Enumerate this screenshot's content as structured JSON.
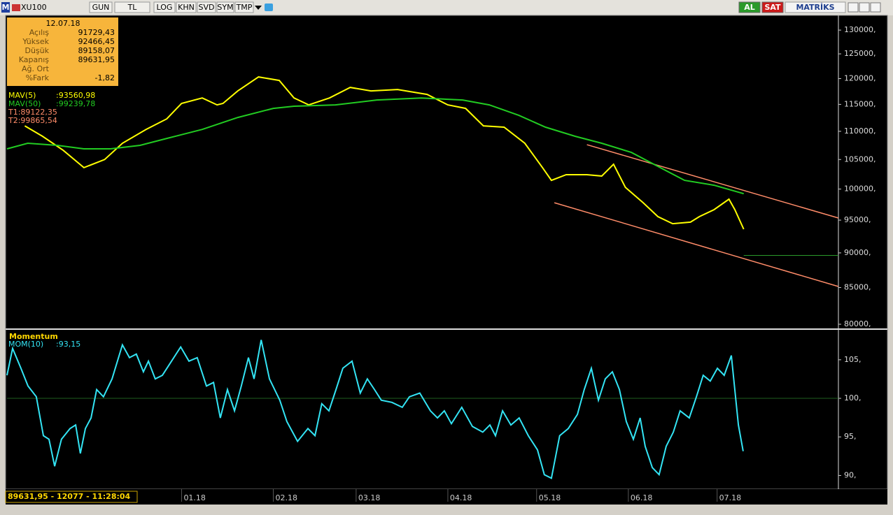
{
  "toolbar": {
    "logo": "M",
    "symbol": "XU100",
    "buttons": [
      "GUN",
      "TL",
      "LOG",
      "KHN",
      "SVD",
      "SYM",
      "TMP"
    ],
    "actions": [
      "AL",
      "SAT"
    ],
    "brand": "MATRİKS"
  },
  "info_panel": {
    "date": "12.07.18",
    "rows": [
      {
        "label": "Açılış",
        "value": "91729,43"
      },
      {
        "label": "Yüksek",
        "value": "92466,45"
      },
      {
        "label": "Düşük",
        "value": "89158,07"
      },
      {
        "label": "Kapanış",
        "value": "89631,95"
      },
      {
        "label": "Ağ. Ort"
      },
      {
        "label": "%Fark",
        "value": "-1,82"
      }
    ]
  },
  "status": "89631,95 - 12077 - 11:28:04",
  "chart_data": [
    {
      "type": "line",
      "log_scale": true,
      "xlim": [
        -59,
        222
      ],
      "ylim": [
        79450,
        133200
      ],
      "yticks": [
        {
          "value": 80000,
          "label": "80000,"
        },
        {
          "value": 85000,
          "label": "85000,"
        },
        {
          "value": 90000,
          "label": "90000,"
        },
        {
          "value": 95000,
          "label": "95000,"
        },
        {
          "value": 100000,
          "label": "100000,"
        },
        {
          "value": 105000,
          "label": "105000,"
        },
        {
          "value": 110000,
          "label": "110000,"
        },
        {
          "value": 115000,
          "label": "115000,"
        },
        {
          "value": 120000,
          "label": "120000,"
        },
        {
          "value": 125000,
          "label": "125000,"
        },
        {
          "value": 130000,
          "label": "130000,"
        }
      ],
      "reference_line": 89631.95,
      "reference_color": "#2a9a2a",
      "series": [
        {
          "name": "MAV(5)",
          "readout": ":93560,98",
          "color": "#ffff00",
          "x": [
            -53,
            -47,
            -40,
            -33,
            -26,
            -20,
            -12,
            -5,
            0,
            7,
            12,
            14,
            19,
            26,
            33,
            38,
            43,
            50,
            57,
            64,
            73,
            83,
            90,
            96,
            102,
            109,
            116,
            122,
            125,
            130,
            137,
            142,
            146,
            150,
            156,
            161,
            166,
            172,
            175,
            180,
            185,
            187,
            190
          ],
          "values": [
            111000,
            109100,
            106600,
            103600,
            105000,
            107850,
            110350,
            112280,
            115180,
            116230,
            114910,
            115180,
            117580,
            120330,
            119640,
            116230,
            114910,
            116230,
            118270,
            117580,
            117860,
            116910,
            114910,
            114240,
            111000,
            110750,
            107850,
            103600,
            101450,
            102400,
            102400,
            102170,
            104180,
            100280,
            97770,
            95550,
            94450,
            94680,
            95550,
            96660,
            98350,
            96660,
            93590
          ]
        },
        {
          "name": "MAV(50)",
          "readout": ":99239,78",
          "color": "#22cc22",
          "x": [
            -59,
            -52,
            -42,
            -33,
            -24,
            -14,
            -5,
            7,
            19,
            31,
            38,
            52,
            66,
            81,
            95,
            104,
            114,
            123,
            133,
            142,
            152,
            161,
            170,
            180,
            190
          ],
          "values": [
            106860,
            107850,
            107480,
            106860,
            106860,
            107480,
            108720,
            110350,
            112540,
            114240,
            114650,
            114910,
            115840,
            116230,
            115840,
            114910,
            112940,
            110750,
            109100,
            107850,
            106240,
            103820,
            101450,
            100630,
            99240
          ]
        }
      ],
      "trendlines": [
        {
          "label": "T1:89122,35",
          "color": "#ff8c69",
          "x": [
            126,
            222
          ],
          "values": [
            97770,
            85140
          ]
        },
        {
          "label": "T2:99865,54",
          "color": "#ff8c69",
          "x": [
            137,
            222
          ],
          "values": [
            107600,
            95330
          ]
        }
      ]
    },
    {
      "type": "line",
      "title": "Momentum",
      "xlim": [
        -59,
        222
      ],
      "ylim": [
        88.5,
        108.7
      ],
      "yticks": [
        {
          "value": 90,
          "label": "90,"
        },
        {
          "value": 95,
          "label": "95,"
        },
        {
          "value": 100,
          "label": "100,"
        },
        {
          "value": 105,
          "label": "105,"
        }
      ],
      "reference_line": 100,
      "reference_color": "#1f5f1f",
      "xticks": [
        {
          "value": 0,
          "label": "01.18"
        },
        {
          "value": 31,
          "label": "02.18"
        },
        {
          "value": 59,
          "label": "03.18"
        },
        {
          "value": 90,
          "label": "04.18"
        },
        {
          "value": 120,
          "label": "05.18"
        },
        {
          "value": 151,
          "label": "06.18"
        },
        {
          "value": 181,
          "label": "07.18"
        }
      ],
      "series": [
        {
          "name": "MOM(10)",
          "readout": ":93,15",
          "color": "#33e4f4",
          "x": [
            -59,
            -57.1,
            -54.3,
            -51.9,
            -49.1,
            -46.7,
            -44.8,
            -42.9,
            -40.6,
            -37.7,
            -35.8,
            -34.2,
            -32.5,
            -30.6,
            -28.7,
            -26.4,
            -23.5,
            -20,
            -17.6,
            -15.3,
            -12.9,
            -11.2,
            -8.9,
            -6.5,
            -3.4,
            -0.3,
            2.5,
            5.3,
            8.4,
            10.8,
            13.1,
            15.5,
            17.9,
            20.2,
            22.6,
            24.5,
            26.9,
            29.7,
            33.2,
            35.6,
            39.2,
            42.7,
            45.1,
            47.4,
            49.8,
            52.2,
            54.5,
            57.6,
            60.4,
            62.8,
            65.2,
            67.5,
            71.1,
            74.6,
            77,
            80.5,
            84.1,
            86.5,
            88.8,
            91.2,
            94.7,
            98.3,
            101.8,
            104.2,
            106.1,
            108.5,
            111.3,
            114.1,
            117.2,
            120.3,
            122.6,
            125,
            127.8,
            130.7,
            133.8,
            136.1,
            138.5,
            140.9,
            143.2,
            145.6,
            148,
            150.3,
            152.7,
            155,
            156.7,
            159.1,
            161.4,
            163.8,
            166.2,
            168.5,
            171.6,
            174,
            176.3,
            178.7,
            181.1,
            183.4,
            185.8,
            188.2,
            189.8
          ],
          "values": [
            102.98,
            106.47,
            103.9,
            101.6,
            100.2,
            95.16,
            94.7,
            91.2,
            94.7,
            96.08,
            96.54,
            92.86,
            96.08,
            97.46,
            101.14,
            100.2,
            102.52,
            106.93,
            105.28,
            105.74,
            103.44,
            104.82,
            102.52,
            102.98,
            104.82,
            106.66,
            104.82,
            105.28,
            101.6,
            102.06,
            97.46,
            101.14,
            98.38,
            101.6,
            105.28,
            102.52,
            107.58,
            102.52,
            99.76,
            97.0,
            94.42,
            96.08,
            95.16,
            99.3,
            98.38,
            101.14,
            103.9,
            104.82,
            100.68,
            102.52,
            101.14,
            99.76,
            99.48,
            98.84,
            100.2,
            100.68,
            98.38,
            97.46,
            98.38,
            96.72,
            98.84,
            96.35,
            95.62,
            96.54,
            95.16,
            98.38,
            96.54,
            97.46,
            95.16,
            93.32,
            90.1,
            89.64,
            95.16,
            96.08,
            97.92,
            101.14,
            103.9,
            99.76,
            102.52,
            103.44,
            101.14,
            97.0,
            94.7,
            97.46,
            93.78,
            91.02,
            90.1,
            93.78,
            95.62,
            98.38,
            97.46,
            100.2,
            102.98,
            102.24,
            103.9,
            102.98,
            105.56,
            96.54,
            93.15
          ]
        }
      ]
    }
  ]
}
